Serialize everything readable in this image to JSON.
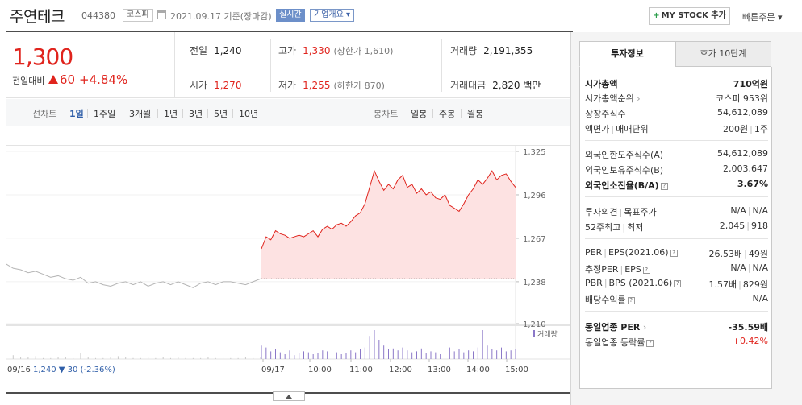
{
  "header": {
    "company": "주연테크",
    "code": "044380",
    "market": "코스피",
    "date": "2021.09.17 기준(장마감)",
    "realtime": "실시간",
    "company_info": "기업개요",
    "mystock": "MY STOCK 추가",
    "quick_order": "빠른주문"
  },
  "price": {
    "current": "1,300",
    "change_label": "전일대비",
    "change": "60",
    "change_pct": "+4.84%"
  },
  "stats": {
    "prev_label": "전일",
    "prev": "1,240",
    "high_label": "고가",
    "high": "1,330",
    "upper": "(상한가 1,610)",
    "volume_label": "거래량",
    "volume": "2,191,355",
    "open_label": "시가",
    "open": "1,270",
    "low_label": "저가",
    "low": "1,255",
    "lower": "(하한가 870)",
    "amount_label": "거래대금",
    "amount": "2,820 백만"
  },
  "period_bar": {
    "line_label": "선차트",
    "periods": [
      "1일",
      "1주일",
      "3개월",
      "1년",
      "3년",
      "5년",
      "10년"
    ],
    "active_period": "1일",
    "candle_label": "봉차트",
    "candles": [
      "일봉",
      "주봉",
      "월봉"
    ]
  },
  "chart_data": {
    "type": "line",
    "y_ticks": [
      "1,325",
      "1,296",
      "1,267",
      "1,238",
      "1,210"
    ],
    "ylim": [
      1210,
      1325
    ],
    "x_ticks": [
      "09/17",
      "10:00",
      "11:00",
      "12:00",
      "13:00",
      "14:00",
      "15:00"
    ],
    "volume_label": "거래량",
    "prev_day_summary": "09/16",
    "prev_day_price": "1,240",
    "prev_day_change": "30 (-2.36%)",
    "colors": {
      "today_line": "#e0241d",
      "today_fill": "#fde2e2",
      "prev_line": "#b5b5b5",
      "volume_today": "#8b78c8",
      "volume_prev": "#c9c9c9"
    },
    "prev_series": [
      1250,
      1247,
      1246,
      1244,
      1245,
      1243,
      1241,
      1242,
      1240,
      1239,
      1241,
      1237,
      1238,
      1236,
      1235,
      1237,
      1238,
      1236,
      1238,
      1235,
      1237,
      1238,
      1236,
      1238,
      1236,
      1234,
      1237,
      1238,
      1236,
      1238,
      1238,
      1237,
      1236,
      1238,
      1240
    ],
    "today_series": [
      1260,
      1268,
      1266,
      1272,
      1270,
      1269,
      1267,
      1268,
      1269,
      1268,
      1270,
      1272,
      1268,
      1273,
      1275,
      1273,
      1276,
      1277,
      1275,
      1278,
      1282,
      1284,
      1290,
      1301,
      1312,
      1305,
      1299,
      1303,
      1300,
      1306,
      1309,
      1301,
      1303,
      1297,
      1300,
      1296,
      1298,
      1294,
      1293,
      1296,
      1289,
      1287,
      1285,
      1290,
      1296,
      1300,
      1306,
      1303,
      1307,
      1312,
      1306,
      1309,
      1310,
      1305,
      1301
    ],
    "volume_prev": [
      2,
      4,
      2,
      2,
      3,
      1,
      1,
      2,
      2,
      1,
      6,
      2,
      1,
      1,
      2,
      3,
      2,
      1,
      1,
      2,
      1,
      2,
      1,
      2,
      1,
      1,
      1,
      2,
      1,
      2,
      1,
      1,
      2,
      1,
      2
    ],
    "volume_today": [
      14,
      12,
      8,
      10,
      7,
      5,
      9,
      4,
      6,
      8,
      7,
      5,
      6,
      9,
      8,
      6,
      7,
      5,
      6,
      9,
      7,
      10,
      12,
      24,
      30,
      20,
      14,
      10,
      11,
      9,
      12,
      9,
      7,
      8,
      11,
      6,
      8,
      7,
      5,
      9,
      12,
      8,
      10,
      7,
      9,
      8,
      12,
      30,
      14,
      10,
      9,
      12,
      8,
      9,
      10
    ]
  },
  "right_panel": {
    "tabs": [
      "투자정보",
      "호가 10단계"
    ],
    "rows": {
      "mkt_cap_k": "시가총액",
      "mkt_cap_v": "710억원",
      "mkt_rank_k": "시가총액순위",
      "mkt_rank_v": "코스피 953위",
      "shares_k": "상장주식수",
      "shares_v": "54,612,089",
      "face_k": "액면가",
      "face_k2": "매매단위",
      "face_v": "200원",
      "face_v2": "1주",
      "foreign_limit_k": "외국인한도주식수(A)",
      "foreign_limit_v": "54,612,089",
      "foreign_hold_k": "외국인보유주식수(B)",
      "foreign_hold_v": "2,003,647",
      "foreign_rate_k": "외국인소진율(B/A)",
      "foreign_rate_v": "3.67%",
      "opinion_k": "투자의견",
      "opinion_k2": "목표주가",
      "opinion_v": "N/A",
      "opinion_v2": "N/A",
      "w52_k": "52주최고",
      "w52_k2": "최저",
      "w52_v": "2,045",
      "w52_v2": "918",
      "per_k": "PER",
      "per_k2": "EPS(2021.06)",
      "per_v": "26.53배",
      "per_v2": "49원",
      "est_k": "추정PER",
      "est_k2": "EPS",
      "est_v": "N/A",
      "est_v2": "N/A",
      "pbr_k": "PBR",
      "pbr_k2": "BPS (2021.06)",
      "pbr_v": "1.57배",
      "pbr_v2": "829원",
      "div_k": "배당수익률",
      "div_v": "N/A",
      "ind_per_k": "동일업종 PER",
      "ind_per_v": "-35.59배",
      "ind_chg_k": "동일업종 등락률",
      "ind_chg_v": "+0.42%"
    }
  }
}
